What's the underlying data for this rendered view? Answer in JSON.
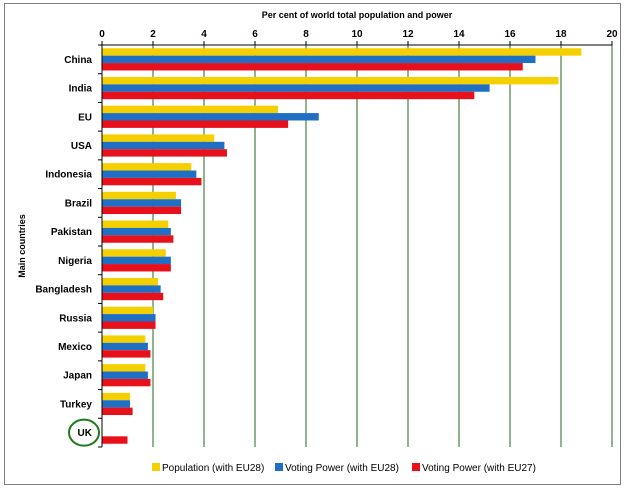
{
  "chart_data": {
    "type": "bar",
    "orientation": "horizontal",
    "title": "Per cent of world total population and power",
    "xlabel": "Per cent of world total population and power",
    "ylabel": "Main countries",
    "xlim": [
      0,
      20
    ],
    "xticks": [
      "0",
      "2",
      "4",
      "6",
      "8",
      "10",
      "12",
      "14",
      "16",
      "18",
      "20"
    ],
    "categories": [
      "China",
      "India",
      "EU",
      "USA",
      "Indonesia",
      "Brazil",
      "Pakistan",
      "Nigeria",
      "Bangladesh",
      "Russia",
      "Mexico",
      "Japan",
      "Turkey",
      "UK"
    ],
    "highlighted_category": "UK",
    "grid": "vertical",
    "legend_position": "bottom",
    "series": [
      {
        "name": "Population (with EU28)",
        "color": "#f5d000",
        "values": [
          18.8,
          17.9,
          6.9,
          4.4,
          3.5,
          2.9,
          2.6,
          2.5,
          2.2,
          2.0,
          1.7,
          1.7,
          1.1,
          0
        ]
      },
      {
        "name": "Voting Power (with EU28)",
        "color": "#1f6fc5",
        "values": [
          17.0,
          15.2,
          8.5,
          4.8,
          3.7,
          3.1,
          2.7,
          2.7,
          2.3,
          2.1,
          1.8,
          1.8,
          1.1,
          0
        ]
      },
      {
        "name": "Voting Power (with EU27)",
        "color": "#e8101a",
        "values": [
          16.5,
          14.6,
          7.3,
          4.9,
          3.9,
          3.1,
          2.8,
          2.7,
          2.4,
          2.1,
          1.9,
          1.9,
          1.2,
          1.0
        ]
      }
    ]
  },
  "colors": {
    "gridline": "#1e6b1e",
    "uk_circle": "#1e7a1e",
    "axis": "#000000"
  }
}
